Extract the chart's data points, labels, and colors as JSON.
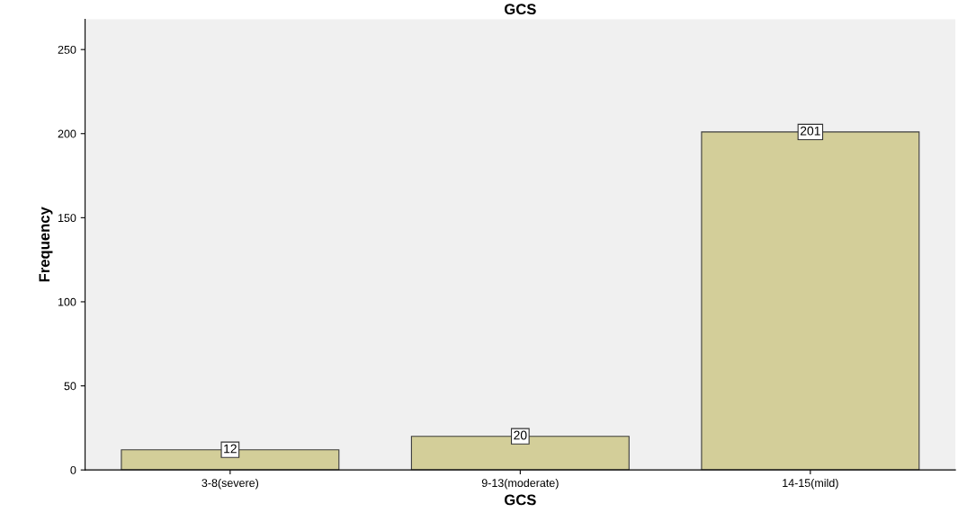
{
  "chart_data": {
    "type": "bar",
    "title": "GCS",
    "xlabel": "GCS",
    "ylabel": "Frequency",
    "categories": [
      "3-8(severe)",
      "9-13(moderate)",
      "14-15(mild)"
    ],
    "values": [
      12,
      20,
      201
    ],
    "color": "#d3ce99",
    "ylim": [
      0,
      268
    ],
    "yticks": [
      0,
      50,
      100,
      150,
      200,
      250
    ],
    "grid": false,
    "data_labels": true
  }
}
